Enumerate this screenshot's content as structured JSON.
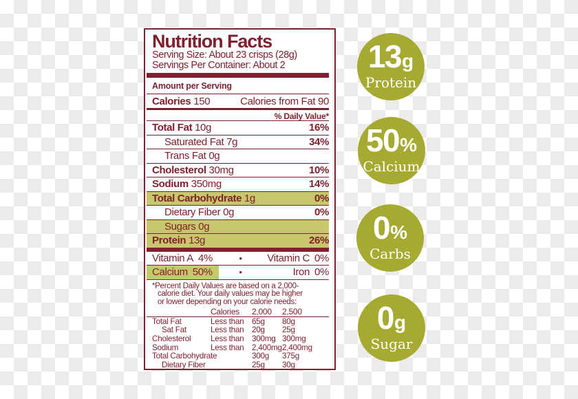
{
  "colors": {
    "maroon": "#801f2e",
    "row_highlight": "#c7c76b",
    "badge_green": "#a7aa31",
    "checker_gray": "#ebebeb",
    "label_background": "#ffffff",
    "badge_text": "#ffffff"
  },
  "label": {
    "title": "Nutrition Facts",
    "serving_size": "Serving Size: About 23 crisps (28g)",
    "servings_per_container": "Servings Per Container: About 2",
    "amount_per_serving": "Amount per Serving",
    "calories": {
      "label": "Calories",
      "value": "150",
      "from_fat_label": "Calories from Fat",
      "from_fat_value": "90"
    },
    "daily_value_header": "% Daily Value*",
    "nutrients": [
      {
        "name": "Total Fat",
        "amount": "10g",
        "dv": "16%",
        "bold": true,
        "indent": false,
        "highlight": false
      },
      {
        "name": "Saturated Fat",
        "amount": "7g",
        "dv": "34%",
        "bold": false,
        "indent": true,
        "highlight": false
      },
      {
        "name": "Trans Fat",
        "amount": "0g",
        "dv": "",
        "bold": false,
        "indent": true,
        "highlight": false
      },
      {
        "name": "Cholesterol",
        "amount": "30mg",
        "dv": "10%",
        "bold": true,
        "indent": false,
        "highlight": false
      },
      {
        "name": "Sodium",
        "amount": "350mg",
        "dv": "14%",
        "bold": true,
        "indent": false,
        "highlight": false
      },
      {
        "name": "Total Carbohydrate",
        "amount": "1g",
        "dv": "0%",
        "bold": true,
        "indent": false,
        "highlight": true
      },
      {
        "name": "Dietary Fiber",
        "amount": "0g",
        "dv": "0%",
        "bold": false,
        "indent": true,
        "highlight": false
      },
      {
        "name": "Sugars",
        "amount": "0g",
        "dv": "",
        "bold": false,
        "indent": true,
        "highlight": true
      },
      {
        "name": "Protein",
        "amount": "13g",
        "dv": "26%",
        "bold": true,
        "indent": false,
        "highlight": true
      }
    ],
    "micronutrients": [
      {
        "left_name": "Vitamin A",
        "left_value": "4%",
        "bullet": "•",
        "right_name": "Vitamin C",
        "right_value": "0%",
        "left_highlight": false
      },
      {
        "left_name": "Calcium",
        "left_value": "50%",
        "bullet": "•",
        "right_name": "Iron",
        "right_value": "0%",
        "left_highlight": true
      }
    ],
    "footnote_lines": [
      "*Percent Daily Values are based on a 2,000-",
      "calorie diet. Your daily values may be higher",
      "or lower depending on your calorie needs:"
    ],
    "footnote_header": {
      "calories": "Calories",
      "col_2000": "2,000",
      "col_2500": "2,500"
    },
    "footnote_table": [
      {
        "name": "Total Fat",
        "qualifier": "Less than",
        "v2000": "65g",
        "v2500": "80g",
        "indent": false
      },
      {
        "name": "Sat Fat",
        "qualifier": "Less than",
        "v2000": "20g",
        "v2500": "25g",
        "indent": true
      },
      {
        "name": "Cholesterol",
        "qualifier": "Less than",
        "v2000": "300mg",
        "v2500": "300mg",
        "indent": false
      },
      {
        "name": "Sodium",
        "qualifier": "Less than",
        "v2000": "2,400mg",
        "v2500": "2,400mg",
        "indent": false
      },
      {
        "name": "Total Carbohydrate",
        "qualifier": "",
        "v2000": "300g",
        "v2500": "375g",
        "indent": false
      },
      {
        "name": "Dietary Fiber",
        "qualifier": "",
        "v2000": "25g",
        "v2500": "30g",
        "indent": true
      }
    ]
  },
  "badges": [
    {
      "value": "13",
      "suffix": "g",
      "label": "Protein"
    },
    {
      "value": "50",
      "suffix": "%",
      "label": "Calcium"
    },
    {
      "value": "0",
      "suffix": "%",
      "label": "Carbs"
    },
    {
      "value": "0",
      "suffix": "g",
      "label": "Sugar"
    }
  ]
}
